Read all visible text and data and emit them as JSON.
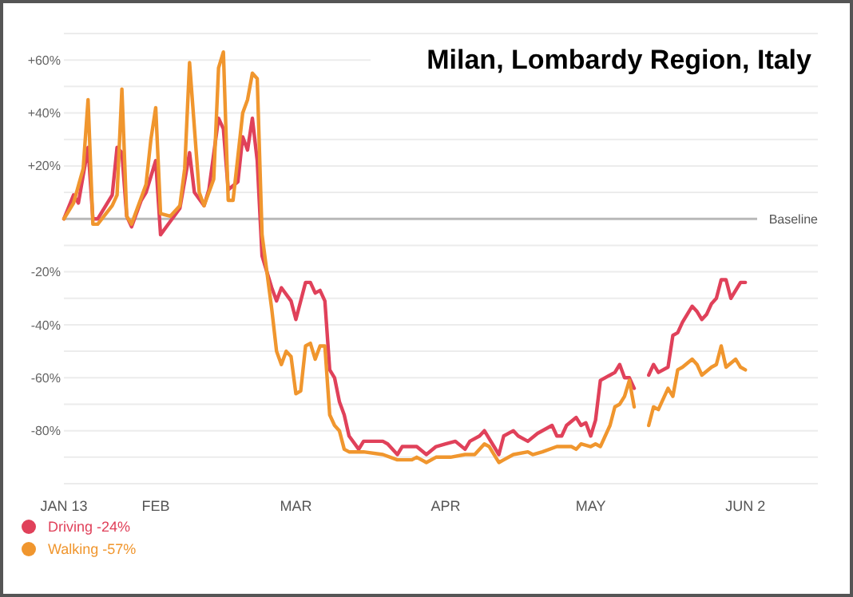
{
  "chart_data": {
    "type": "line",
    "title": "Milan, Lombardy Region, Italy",
    "xlim": [
      "--01-13",
      "--06-17"
    ],
    "xticks": [
      {
        "value": "--01-13",
        "label": "JAN 13"
      },
      {
        "value": "--02-01",
        "label": "FEB"
      },
      {
        "value": "--03-01",
        "label": "MAR"
      },
      {
        "value": "--04-01",
        "label": "APR"
      },
      {
        "value": "--05-01",
        "label": "MAY"
      },
      {
        "value": "--06-02",
        "label": "JUN 2"
      }
    ],
    "ylim": [
      -100,
      70
    ],
    "yticks": [
      {
        "value": 70,
        "label": null
      },
      {
        "value": 60,
        "label": "+60%"
      },
      {
        "value": 50,
        "label": null
      },
      {
        "value": 40,
        "label": "+40%"
      },
      {
        "value": 30,
        "label": null
      },
      {
        "value": 20,
        "label": "+20%"
      },
      {
        "value": 10,
        "label": null
      },
      {
        "value": -10,
        "label": null
      },
      {
        "value": -20,
        "label": "-20%"
      },
      {
        "value": -30,
        "label": null
      },
      {
        "value": -40,
        "label": "-40%"
      },
      {
        "value": -50,
        "label": null
      },
      {
        "value": -60,
        "label": "-60%"
      },
      {
        "value": -70,
        "label": null
      },
      {
        "value": -80,
        "label": "-80%"
      },
      {
        "value": -90,
        "label": null
      },
      {
        "value": -100,
        "label": null
      }
    ],
    "grid": "y",
    "ref_lines": [
      {
        "axis": "y",
        "value": 0,
        "label": "Baseline",
        "color": "#b8b8b8"
      }
    ],
    "legend": "bottom left",
    "series": [
      {
        "name": "Driving -24%",
        "color": "#e0415a",
        "x": [
          "--01-13",
          "--01-15",
          "--01-16",
          "--01-18",
          "--01-19",
          "--01-20",
          "--01-23",
          "--01-24",
          "--01-25",
          "--01-26",
          "--01-27",
          "--01-29",
          "--01-30",
          "--02-01",
          "--02-02",
          "--02-04",
          "--02-06",
          "--02-08",
          "--02-09",
          "--02-11",
          "--02-12",
          "--02-14",
          "--02-15",
          "--02-16",
          "--02-18",
          "--02-19",
          "--02-20",
          "--02-21",
          "--02-22",
          "--02-23",
          "--02-25",
          "--02-26",
          "--02-27",
          "--02-29",
          "--03-01",
          "--03-03",
          "--03-04",
          "--03-05",
          "--03-06",
          "--03-07",
          "--03-08",
          "--03-09",
          "--03-10",
          "--03-11",
          "--03-12",
          "--03-14",
          "--03-15",
          "--03-18",
          "--03-19",
          "--03-20",
          "--03-22",
          "--03-23",
          "--03-24",
          "--03-26",
          "--03-28",
          "--03-30",
          "--04-01",
          "--04-03",
          "--04-05",
          "--04-06",
          "--04-08",
          "--04-09",
          "--04-12",
          "--04-13",
          "--04-15",
          "--04-16",
          "--04-18",
          "--04-20",
          "--04-23",
          "--04-24",
          "--04-25",
          "--04-26",
          "--04-28",
          "--04-29",
          "--04-30",
          "--05-01",
          "--05-02",
          "--05-03",
          "--05-05",
          "--05-06",
          "--05-07",
          "--05-08",
          "--05-09",
          "--05-10",
          "--05-11",
          "--05-13",
          "--05-14",
          "--05-15",
          "--05-17",
          "--05-18",
          "--05-19",
          "--05-20",
          "--05-22",
          "--05-23",
          "--05-24",
          "--05-25",
          "--05-26",
          "--05-27",
          "--05-28",
          "--05-29",
          "--05-30",
          "--06-01",
          "--06-02"
        ],
        "values": [
          0,
          9,
          6,
          27,
          0,
          0,
          9,
          27,
          25,
          1,
          -3,
          7,
          10,
          22,
          -6,
          -1,
          4,
          25,
          10,
          5,
          11,
          38,
          34,
          11,
          14,
          31,
          26,
          38,
          22,
          -14,
          -26,
          -31,
          -26,
          -31,
          -38,
          -24,
          -24,
          -28,
          -27,
          -31,
          -57,
          -60,
          -69,
          -74,
          -82,
          -87,
          -84,
          -84,
          -84,
          -85,
          -89,
          -86,
          -86,
          -86,
          -89,
          -86,
          -85,
          -84,
          -87,
          -84,
          -82,
          -80,
          -89,
          -82,
          -80,
          -82,
          -84,
          -81,
          -78,
          -82,
          -82,
          -78,
          -75,
          -78,
          -77,
          -82,
          -76,
          -61,
          -59,
          -58,
          -55,
          -60,
          -60,
          -64,
          null,
          -59,
          -55,
          -58,
          -56,
          -44,
          -43,
          -39,
          -33,
          -35,
          -38,
          -36,
          -32,
          -30,
          -23,
          -23,
          -30,
          -24,
          -24
        ]
      },
      {
        "name": "Walking -57%",
        "color": "#f0962e",
        "x": [
          "--01-13",
          "--01-14",
          "--01-15",
          "--01-17",
          "--01-18",
          "--01-19",
          "--01-20",
          "--01-23",
          "--01-24",
          "--01-25",
          "--01-26",
          "--01-27",
          "--01-29",
          "--01-30",
          "--01-31",
          "--02-01",
          "--02-02",
          "--02-04",
          "--02-06",
          "--02-07",
          "--02-08",
          "--02-10",
          "--02-11",
          "--02-13",
          "--02-14",
          "--02-15",
          "--02-16",
          "--02-17",
          "--02-19",
          "--02-20",
          "--02-21",
          "--02-22",
          "--02-23",
          "--02-25",
          "--02-26",
          "--02-27",
          "--02-28",
          "--02-29",
          "--03-01",
          "--03-02",
          "--03-03",
          "--03-04",
          "--03-05",
          "--03-06",
          "--03-07",
          "--03-08",
          "--03-09",
          "--03-10",
          "--03-11",
          "--03-12",
          "--03-15",
          "--03-19",
          "--03-22",
          "--03-25",
          "--03-26",
          "--03-28",
          "--03-30",
          "--04-02",
          "--04-05",
          "--04-07",
          "--04-09",
          "--04-10",
          "--04-12",
          "--04-13",
          "--04-15",
          "--04-18",
          "--04-19",
          "--04-21",
          "--04-24",
          "--04-27",
          "--04-28",
          "--04-29",
          "--05-01",
          "--05-02",
          "--05-03",
          "--05-04",
          "--05-05",
          "--05-06",
          "--05-07",
          "--05-08",
          "--05-09",
          "--05-10",
          "--05-11",
          "--05-13",
          "--05-14",
          "--05-15",
          "--05-17",
          "--05-18",
          "--05-19",
          "--05-20",
          "--05-22",
          "--05-23",
          "--05-24",
          "--05-26",
          "--05-27",
          "--05-28",
          "--05-29",
          "--05-31",
          "--06-01",
          "--06-02"
        ],
        "values": [
          0,
          3,
          6,
          19,
          45,
          -2,
          -2,
          5,
          9,
          49,
          1,
          -2,
          8,
          13,
          30,
          42,
          2,
          1,
          5,
          19,
          59,
          10,
          5,
          15,
          57,
          63,
          7,
          7,
          40,
          45,
          55,
          53,
          -6,
          -34,
          -50,
          -55,
          -50,
          -52,
          -66,
          -65,
          -48,
          -47,
          -53,
          -48,
          -48,
          -74,
          -78,
          -80,
          -87,
          -88,
          -88,
          -89,
          -91,
          -91,
          -90,
          -92,
          -90,
          -90,
          -89,
          -89,
          -85,
          -86,
          -92,
          -91,
          -89,
          -88,
          -89,
          -88,
          -86,
          -86,
          -87,
          -85,
          -86,
          -85,
          -86,
          -82,
          -78,
          -71,
          -70,
          -67,
          -61,
          -71,
          null,
          -78,
          -71,
          -72,
          -64,
          -67,
          -57,
          -56,
          -53,
          -55,
          -59,
          -56,
          -55,
          -48,
          -56,
          -53,
          -56,
          -57
        ]
      }
    ]
  }
}
